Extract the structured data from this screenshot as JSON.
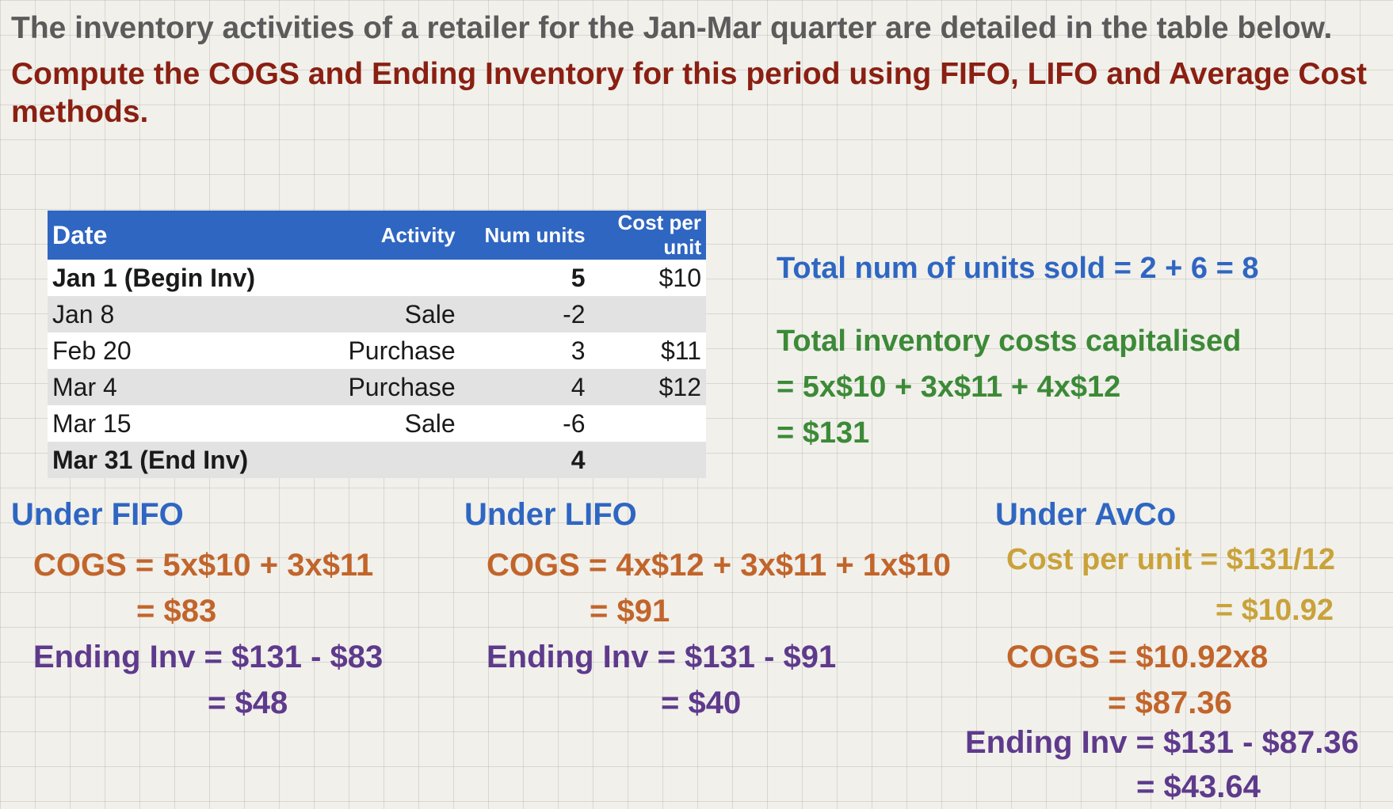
{
  "intro": "The inventory activities of a retailer for the Jan-Mar quarter are detailed in the table below.",
  "task": "Compute the COGS and Ending Inventory for this period using FIFO, LIFO and Average Cost methods.",
  "table": {
    "headers": [
      "Date",
      "Activity",
      "Num units",
      "Cost per unit"
    ],
    "rows": [
      {
        "date": "Jan 1 (Begin Inv)",
        "activity": "",
        "units": "5",
        "cost": "$10"
      },
      {
        "date": "Jan 8",
        "activity": "Sale",
        "units": "-2",
        "cost": ""
      },
      {
        "date": "Feb 20",
        "activity": "Purchase",
        "units": "3",
        "cost": "$11"
      },
      {
        "date": "Mar 4",
        "activity": "Purchase",
        "units": "4",
        "cost": "$12"
      },
      {
        "date": "Mar 15",
        "activity": "Sale",
        "units": "-6",
        "cost": ""
      },
      {
        "date": "Mar 31 (End Inv)",
        "activity": "",
        "units": "4",
        "cost": ""
      }
    ]
  },
  "summary": {
    "units_sold": "Total num of units sold = 2 + 6 = 8",
    "costs_title": "Total inventory costs capitalised",
    "costs_line1": "= 5x$10 + 3x$11 + 4x$12",
    "costs_line2": "= $131"
  },
  "fifo": {
    "heading": "Under FIFO",
    "cogs_1": "COGS =  5x$10 + 3x$11",
    "cogs_2": "= $83",
    "inv_1": "Ending Inv = $131 - $83",
    "inv_2": "= $48"
  },
  "lifo": {
    "heading": "Under LIFO",
    "cogs_1": "COGS =  4x$12 + 3x$11 + 1x$10",
    "cogs_2": "= $91",
    "inv_1": "Ending Inv = $131 - $91",
    "inv_2": "= $40"
  },
  "avco": {
    "heading": "Under AvCo",
    "cpu_1": "Cost per unit = $131/12",
    "cpu_2": "= $10.92",
    "cogs_1": "COGS =  $10.92x8",
    "cogs_2": "= $87.36",
    "inv_1": "Ending Inv = $131 - $87.36",
    "inv_2": "= $43.64"
  }
}
